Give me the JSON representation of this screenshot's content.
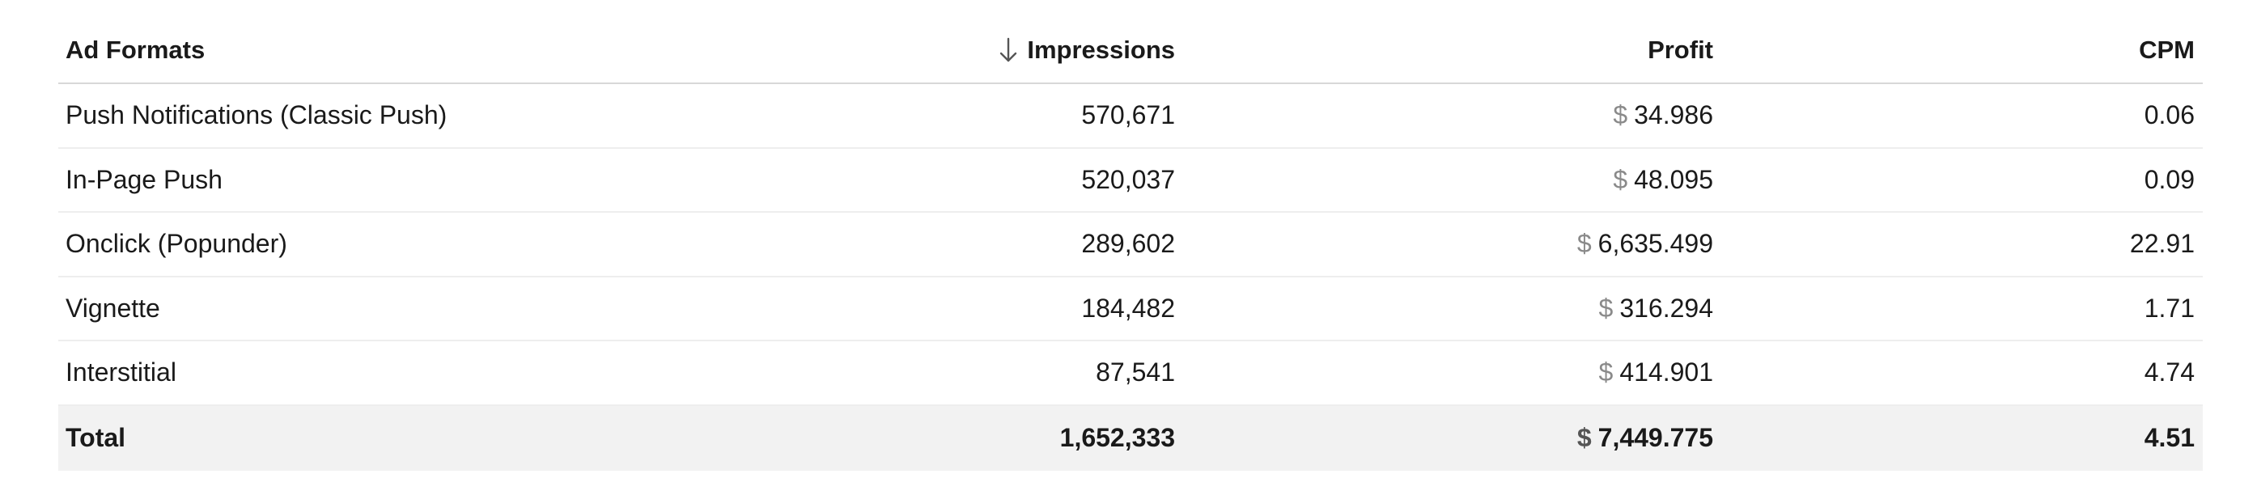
{
  "table": {
    "columns": {
      "ad_formats": "Ad Formats",
      "impressions": "Impressions",
      "profit": "Profit",
      "cpm": "CPM"
    },
    "sort": {
      "column": "Impressions",
      "direction": "descending",
      "icon": "arrow-down-icon"
    },
    "currency_symbol": "$",
    "rows": [
      {
        "format": "Push Notifications (Classic Push)",
        "impressions": "570,671",
        "profit": "34.986",
        "cpm": "0.06"
      },
      {
        "format": "In-Page Push",
        "impressions": "520,037",
        "profit": "48.095",
        "cpm": "0.09"
      },
      {
        "format": "Onclick (Popunder)",
        "impressions": "289,602",
        "profit": "6,635.499",
        "cpm": "22.91"
      },
      {
        "format": "Vignette",
        "impressions": "184,482",
        "profit": "316.294",
        "cpm": "1.71"
      },
      {
        "format": "Interstitial",
        "impressions": "87,541",
        "profit": "414.901",
        "cpm": "4.74"
      }
    ],
    "total": {
      "label": "Total",
      "impressions": "1,652,333",
      "profit": "7,449.775",
      "cpm": "4.51"
    }
  }
}
